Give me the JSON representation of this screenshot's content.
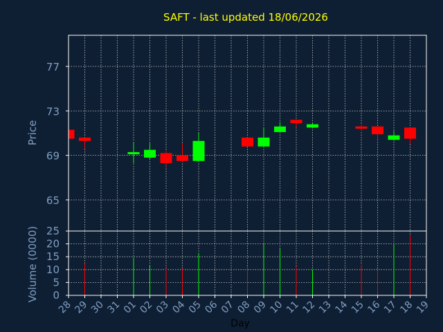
{
  "chart_data": {
    "type": "candlestick",
    "title": "SAFT - last updated 18/06/2026",
    "xlabel": "Day",
    "grid": true,
    "colors": {
      "background": "#0f1f33",
      "frame": "#ffffff",
      "grid": "#c8c8c8",
      "title": "#ffff00",
      "axis_text": "#7f9fc4",
      "up": "#00ff00",
      "down": "#ff0000"
    },
    "x_ticks": [
      "28",
      "29",
      "30",
      "31",
      "01",
      "02",
      "03",
      "04",
      "05",
      "06",
      "07",
      "08",
      "09",
      "10",
      "11",
      "12",
      "13",
      "14",
      "15",
      "16",
      "17",
      "18",
      "19"
    ],
    "price": {
      "ylabel": "Price",
      "ylim": [
        62.2,
        79.8
      ],
      "yticks": [
        65,
        69,
        73,
        77
      ],
      "candles": [
        {
          "x": "28",
          "open": 71.3,
          "high": 71.3,
          "low": 70.5,
          "close": 70.5
        },
        {
          "x": "29",
          "open": 70.6,
          "high": 70.6,
          "low": 69.6,
          "close": 70.3
        },
        {
          "x": "01",
          "open": 69.1,
          "high": 70.2,
          "low": 68.3,
          "close": 69.3
        },
        {
          "x": "02",
          "open": 68.8,
          "high": 70.1,
          "low": 68.6,
          "close": 69.5
        },
        {
          "x": "03",
          "open": 69.2,
          "high": 69.4,
          "low": 68.0,
          "close": 68.3
        },
        {
          "x": "04",
          "open": 69.0,
          "high": 70.1,
          "low": 68.4,
          "close": 68.5
        },
        {
          "x": "05",
          "open": 68.5,
          "high": 71.0,
          "low": 68.4,
          "close": 70.3
        },
        {
          "x": "08",
          "open": 70.6,
          "high": 70.6,
          "low": 69.8,
          "close": 69.8
        },
        {
          "x": "09",
          "open": 69.8,
          "high": 71.5,
          "low": 69.7,
          "close": 70.6
        },
        {
          "x": "10",
          "open": 71.1,
          "high": 72.0,
          "low": 71.0,
          "close": 71.6
        },
        {
          "x": "11",
          "open": 72.2,
          "high": 72.2,
          "low": 71.5,
          "close": 71.9
        },
        {
          "x": "12",
          "open": 71.5,
          "high": 71.9,
          "low": 71.5,
          "close": 71.8
        },
        {
          "x": "15",
          "open": 71.6,
          "high": 71.8,
          "low": 71.2,
          "close": 71.4
        },
        {
          "x": "16",
          "open": 71.6,
          "high": 71.6,
          "low": 70.4,
          "close": 70.9
        },
        {
          "x": "17",
          "open": 70.4,
          "high": 71.2,
          "low": 70.3,
          "close": 70.8
        },
        {
          "x": "18",
          "open": 71.5,
          "high": 71.5,
          "low": 70.0,
          "close": 70.5
        }
      ]
    },
    "volume": {
      "ylabel": "Volume (0000)",
      "ylim": [
        0,
        25
      ],
      "yticks": [
        0,
        5,
        10,
        15,
        20,
        25
      ],
      "bars": [
        {
          "x": "29",
          "value": 12.5,
          "direction": "down"
        },
        {
          "x": "01",
          "value": 14.5,
          "direction": "up"
        },
        {
          "x": "02",
          "value": 11.5,
          "direction": "up"
        },
        {
          "x": "03",
          "value": 10.5,
          "direction": "down"
        },
        {
          "x": "04",
          "value": 10.5,
          "direction": "down"
        },
        {
          "x": "05",
          "value": 16.5,
          "direction": "up"
        },
        {
          "x": "08",
          "value": 11.5,
          "direction": "down"
        },
        {
          "x": "09",
          "value": 20.0,
          "direction": "up"
        },
        {
          "x": "10",
          "value": 18.0,
          "direction": "up"
        },
        {
          "x": "11",
          "value": 11.5,
          "direction": "down"
        },
        {
          "x": "12",
          "value": 10.0,
          "direction": "up"
        },
        {
          "x": "15",
          "value": 12.0,
          "direction": "down"
        },
        {
          "x": "16",
          "value": 10.5,
          "direction": "down"
        },
        {
          "x": "17",
          "value": 20.0,
          "direction": "up"
        },
        {
          "x": "18",
          "value": 23.5,
          "direction": "down"
        }
      ]
    }
  }
}
